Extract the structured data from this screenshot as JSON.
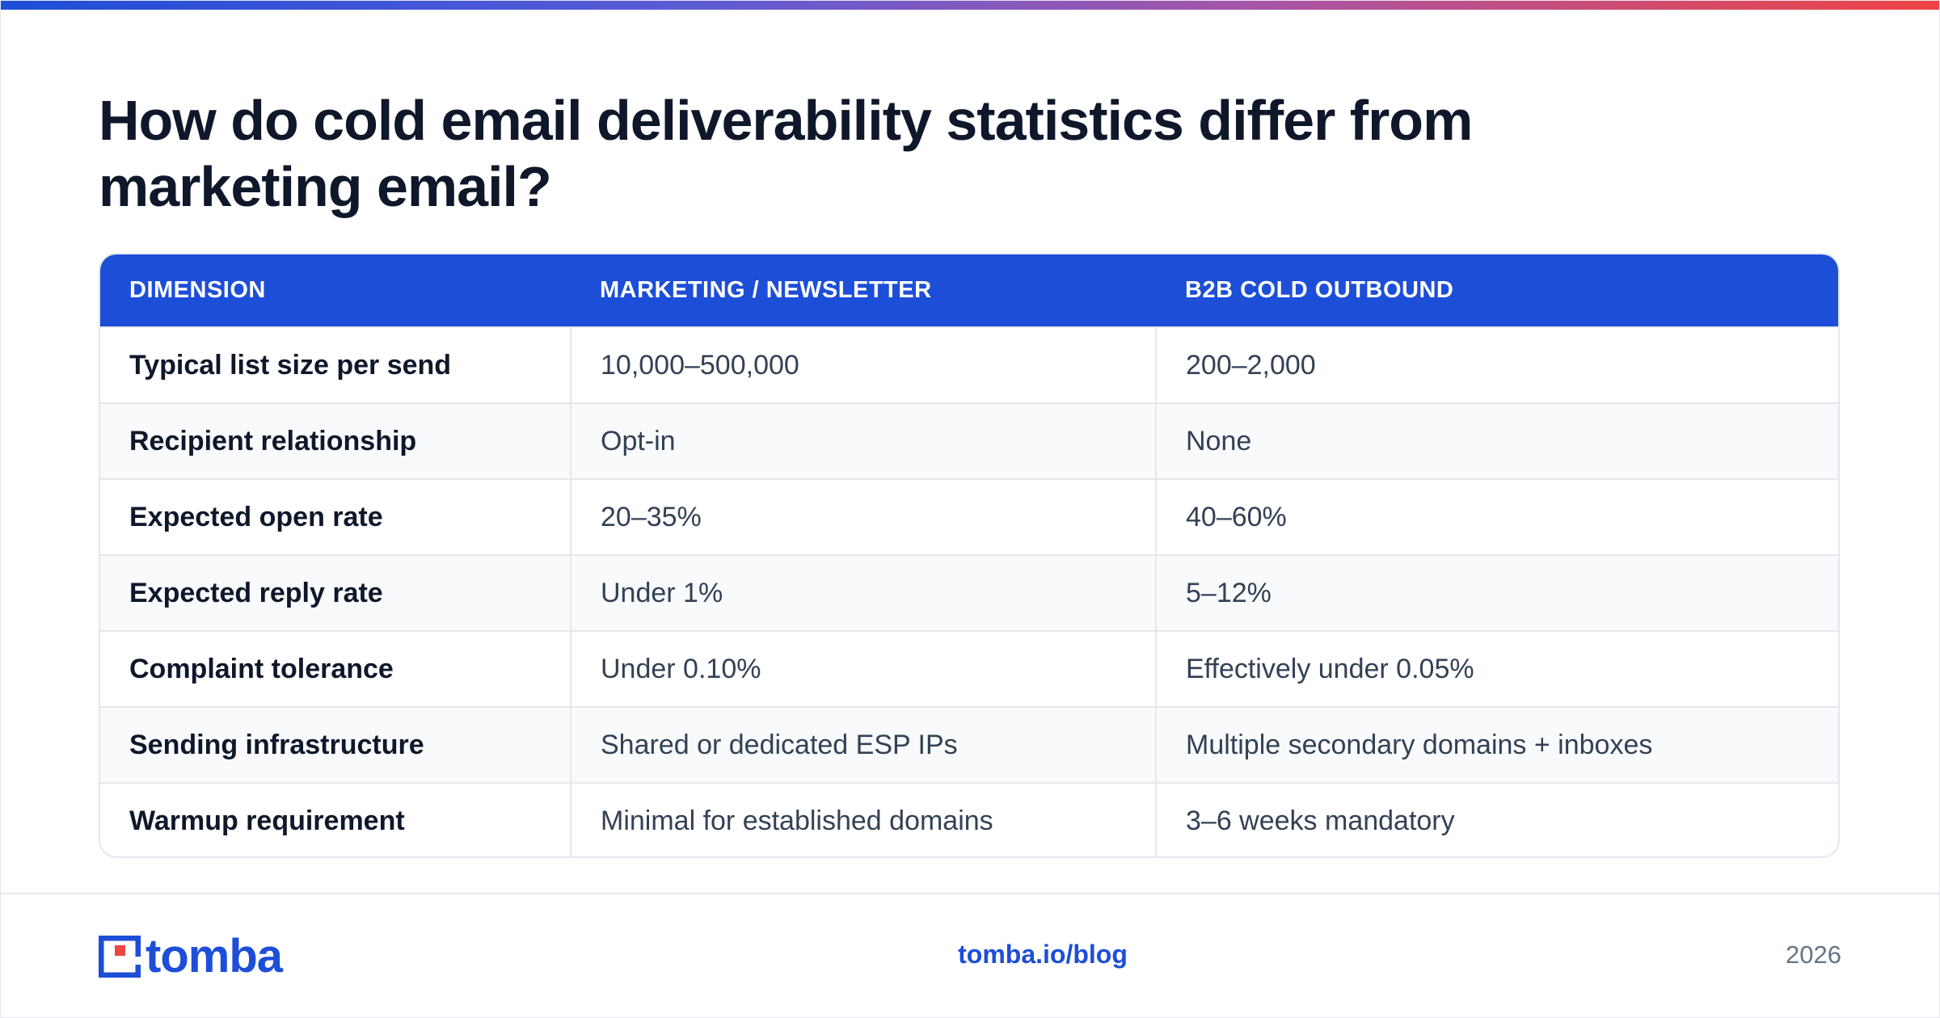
{
  "title": "How do cold email deliverability statistics differ from marketing email?",
  "table": {
    "headers": [
      "DIMENSION",
      "MARKETING / NEWSLETTER",
      "B2B COLD OUTBOUND"
    ],
    "rows": [
      [
        "Typical list size per send",
        "10,000–500,000",
        "200–2,000"
      ],
      [
        "Recipient relationship",
        "Opt-in",
        "None"
      ],
      [
        "Expected open rate",
        "20–35%",
        "40–60%"
      ],
      [
        "Expected reply rate",
        "Under 1%",
        "5–12%"
      ],
      [
        "Complaint tolerance",
        "Under 0.10%",
        "Effectively under 0.05%"
      ],
      [
        "Sending infrastructure",
        "Shared or dedicated ESP IPs",
        "Multiple secondary domains + inboxes"
      ],
      [
        "Warmup requirement",
        "Minimal for established domains",
        "3–6 weeks mandatory"
      ]
    ]
  },
  "footer": {
    "logo_text": "tomba",
    "url": "tomba.io/blog",
    "year": "2026"
  },
  "colors": {
    "accent": "#1d4ed8",
    "header_bg": "#1d4ed8",
    "title": "#0f172a",
    "gradient_end": "#ef4444"
  }
}
